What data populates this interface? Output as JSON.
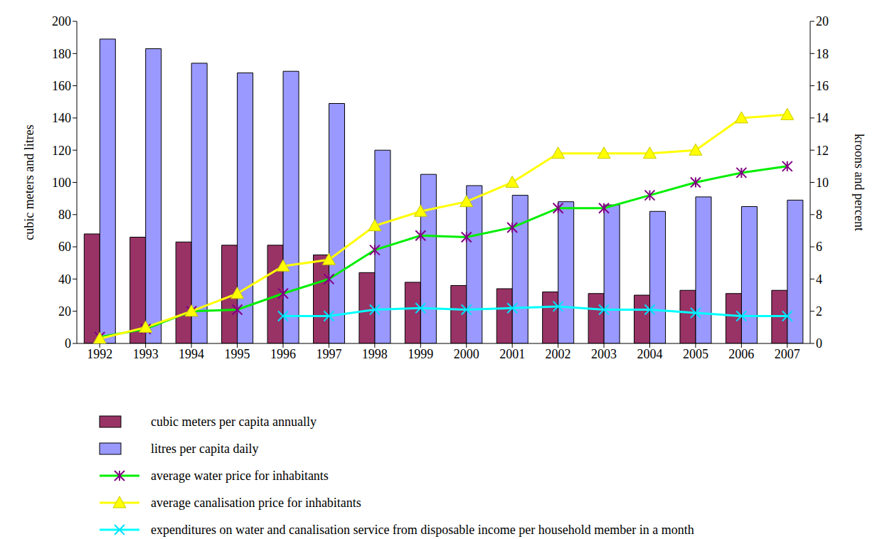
{
  "chart_data": {
    "type": "bar",
    "categories": [
      "1992",
      "1993",
      "1994",
      "1995",
      "1996",
      "1997",
      "1998",
      "1999",
      "2000",
      "2001",
      "2002",
      "2003",
      "2004",
      "2005",
      "2006",
      "2007"
    ],
    "y_label": "cubic meters and litres",
    "y2_label": "kroons and percent",
    "ylim": [
      0,
      200
    ],
    "yticks": [
      0,
      20,
      40,
      60,
      80,
      100,
      120,
      140,
      160,
      180,
      200
    ],
    "y2lim": [
      0,
      20
    ],
    "y2ticks": [
      0,
      2,
      4,
      6,
      8,
      10,
      12,
      14,
      16,
      18,
      20
    ],
    "grid": false,
    "legend": "bottom",
    "series": [
      {
        "name": "cubic meters per capita annually",
        "type": "bar",
        "color": "#993366",
        "values": [
          68,
          66,
          63,
          61,
          61,
          55,
          44,
          38,
          36,
          34,
          32,
          31,
          30,
          33,
          31,
          33
        ]
      },
      {
        "name": "litres per capita daily",
        "type": "bar",
        "color": "#9999ff",
        "values": [
          189,
          183,
          174,
          168,
          169,
          149,
          120,
          105,
          98,
          92,
          88,
          86,
          82,
          91,
          85,
          89
        ]
      },
      {
        "name": "average water price for inhabitants",
        "type": "line",
        "axis": "y2",
        "color": "#00ee00",
        "marker": "x",
        "values": [
          0.4,
          0.9,
          2.0,
          2.1,
          3.1,
          4.0,
          5.8,
          6.7,
          6.6,
          7.2,
          8.4,
          8.4,
          9.2,
          10.0,
          10.6,
          11.0
        ]
      },
      {
        "name": "average canalisation price for inhabitants",
        "type": "line",
        "axis": "y2",
        "color": "#ffff00",
        "marker": "triangle",
        "values": [
          0.3,
          1.0,
          2.0,
          3.1,
          4.8,
          5.2,
          7.3,
          8.2,
          8.8,
          10.0,
          11.8,
          11.8,
          11.8,
          12.0,
          14.0,
          14.2
        ]
      },
      {
        "name": "expenditures on water and canalisation service from disposable income per household member in a month",
        "type": "line",
        "axis": "y2",
        "color": "#00ffff",
        "marker": "x",
        "values": [
          null,
          null,
          null,
          null,
          1.7,
          1.7,
          2.1,
          2.2,
          2.1,
          2.2,
          2.3,
          2.1,
          2.1,
          1.9,
          1.7,
          1.7
        ]
      }
    ]
  }
}
